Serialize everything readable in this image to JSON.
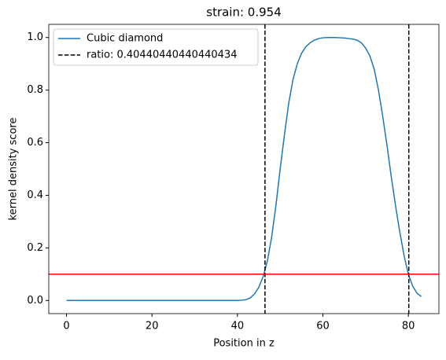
{
  "chart_data": {
    "type": "line",
    "title": "strain: 0.954",
    "xlabel": "Position in z",
    "ylabel": "kernel density score",
    "x": [
      0,
      1,
      2,
      3,
      4,
      5,
      6,
      7,
      8,
      9,
      10,
      11,
      12,
      13,
      14,
      15,
      16,
      17,
      18,
      19,
      20,
      21,
      22,
      23,
      24,
      25,
      26,
      27,
      28,
      29,
      30,
      31,
      32,
      33,
      34,
      35,
      36,
      37,
      38,
      39,
      40,
      41,
      42,
      43,
      44,
      45,
      46,
      47,
      48,
      49,
      50,
      51,
      52,
      53,
      54,
      55,
      56,
      57,
      58,
      59,
      60,
      61,
      62,
      63,
      64,
      65,
      66,
      67,
      68,
      69,
      70,
      71,
      72,
      73,
      74,
      75,
      76,
      77,
      78,
      79,
      80,
      81,
      82,
      83
    ],
    "series": [
      {
        "name": "Cubic diamond",
        "color": "#1f77b4",
        "values": [
          0,
          0,
          0,
          0,
          0,
          0,
          0,
          0,
          0,
          0,
          0,
          0,
          0,
          0,
          0,
          0,
          0,
          0,
          0,
          0,
          0,
          0,
          0,
          0,
          0,
          0,
          0,
          0,
          0,
          0,
          0,
          0,
          0,
          0,
          0,
          0,
          0,
          0,
          0,
          0,
          0,
          0.001,
          0.003,
          0.01,
          0.025,
          0.05,
          0.09,
          0.15,
          0.24,
          0.36,
          0.5,
          0.63,
          0.75,
          0.84,
          0.9,
          0.94,
          0.965,
          0.98,
          0.99,
          0.996,
          0.999,
          1.0,
          1.0,
          1.0,
          0.999,
          0.998,
          0.996,
          0.994,
          0.99,
          0.98,
          0.96,
          0.93,
          0.88,
          0.8,
          0.7,
          0.59,
          0.47,
          0.36,
          0.26,
          0.17,
          0.1,
          0.055,
          0.028,
          0.015
        ]
      }
    ],
    "vlines": {
      "name": "ratio: 0.40440440440440434",
      "color": "#000000",
      "x": [
        46.45,
        80.1
      ]
    },
    "hline": {
      "value": 0.1,
      "color": "#ff0000"
    },
    "xlim": [
      -4.15,
      87.15
    ],
    "xticks": [
      0,
      20,
      40,
      60,
      80
    ],
    "ylim": [
      -0.05,
      1.05
    ],
    "yticks": [
      {
        "value": 0,
        "label": "0.0"
      },
      {
        "value": 0.2,
        "label": "0.2"
      },
      {
        "value": 0.4,
        "label": "0.4"
      },
      {
        "value": 0.6,
        "label": "0.6"
      },
      {
        "value": 0.8,
        "label": "0.8"
      },
      {
        "value": 1,
        "label": "1.0"
      }
    ],
    "legend": "upper left"
  }
}
